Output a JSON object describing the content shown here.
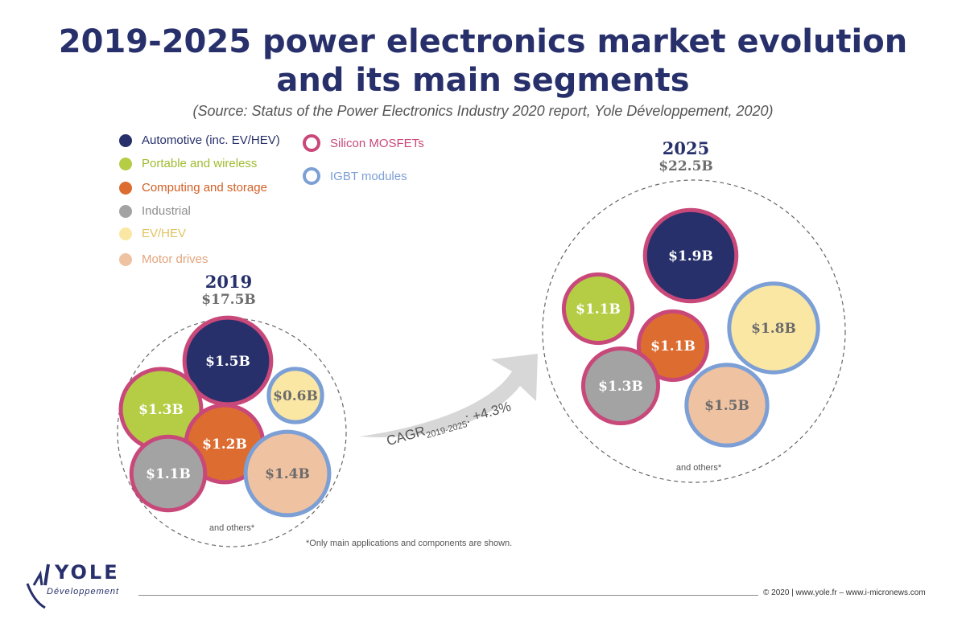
{
  "title": {
    "line1": "2019-2025 power electronics market evolution",
    "line2": "and its main segments",
    "source": "(Source: Status of the Power Electronics Industry 2020 report, Yole Développement, 2020)"
  },
  "legend": {
    "segments": [
      {
        "label": "Automotive (inc. EV/HEV)",
        "color": "#27306b"
      },
      {
        "label": "Portable and wireless",
        "color": "#b5cd45"
      },
      {
        "label": "Computing and storage",
        "color": "#dc6c30"
      },
      {
        "label": "Industrial",
        "color": "#a3a3a3"
      },
      {
        "label": "EV/HEV",
        "color": "#fbe7a4"
      },
      {
        "label": "Motor drives",
        "color": "#efc2a1"
      }
    ],
    "components": [
      {
        "label": "Silicon MOSFETs",
        "color": "#c9487a"
      },
      {
        "label": "IGBT modules",
        "color": "#7c9fd5"
      }
    ]
  },
  "chart_data": [
    {
      "type": "bubble",
      "year": "2019",
      "total": "$17.5B",
      "others_label": "and others*",
      "bubbles": [
        {
          "label": "$1.5B",
          "value": 1.5,
          "segment": "Automotive (inc. EV/HEV)",
          "component": "Silicon MOSFETs"
        },
        {
          "label": "$1.3B",
          "value": 1.3,
          "segment": "Portable and wireless",
          "component": "Silicon MOSFETs"
        },
        {
          "label": "$0.6B",
          "value": 0.6,
          "segment": "EV/HEV",
          "component": "IGBT modules"
        },
        {
          "label": "$1.2B",
          "value": 1.2,
          "segment": "Computing and storage",
          "component": "Silicon MOSFETs"
        },
        {
          "label": "$1.1B",
          "value": 1.1,
          "segment": "Industrial",
          "component": "Silicon MOSFETs"
        },
        {
          "label": "$1.4B",
          "value": 1.4,
          "segment": "Motor drives",
          "component": "IGBT modules"
        }
      ]
    },
    {
      "type": "bubble",
      "year": "2025",
      "total": "$22.5B",
      "others_label": "and others*",
      "bubbles": [
        {
          "label": "$1.9B",
          "value": 1.9,
          "segment": "Automotive (inc. EV/HEV)",
          "component": "Silicon MOSFETs"
        },
        {
          "label": "$1.1B",
          "value": 1.1,
          "segment": "Portable and wireless",
          "component": "Silicon MOSFETs"
        },
        {
          "label": "$1.8B",
          "value": 1.8,
          "segment": "EV/HEV",
          "component": "IGBT modules"
        },
        {
          "label": "$1.1B",
          "value": 1.1,
          "segment": "Computing and storage",
          "component": "Silicon MOSFETs"
        },
        {
          "label": "$1.3B",
          "value": 1.3,
          "segment": "Industrial",
          "component": "Silicon MOSFETs"
        },
        {
          "label": "$1.5B",
          "value": 1.5,
          "segment": "Motor drives",
          "component": "IGBT modules"
        }
      ]
    }
  ],
  "cagr": {
    "prefix": "CAGR",
    "sub": "2019-2025",
    "value": ": +4.3%"
  },
  "footnote": "*Only main applications and components are shown.",
  "footer": {
    "logo_main": "YOLE",
    "logo_sub": "Développement",
    "copyright": "© 2020 | www.yole.fr – www.i-micronews.com"
  }
}
